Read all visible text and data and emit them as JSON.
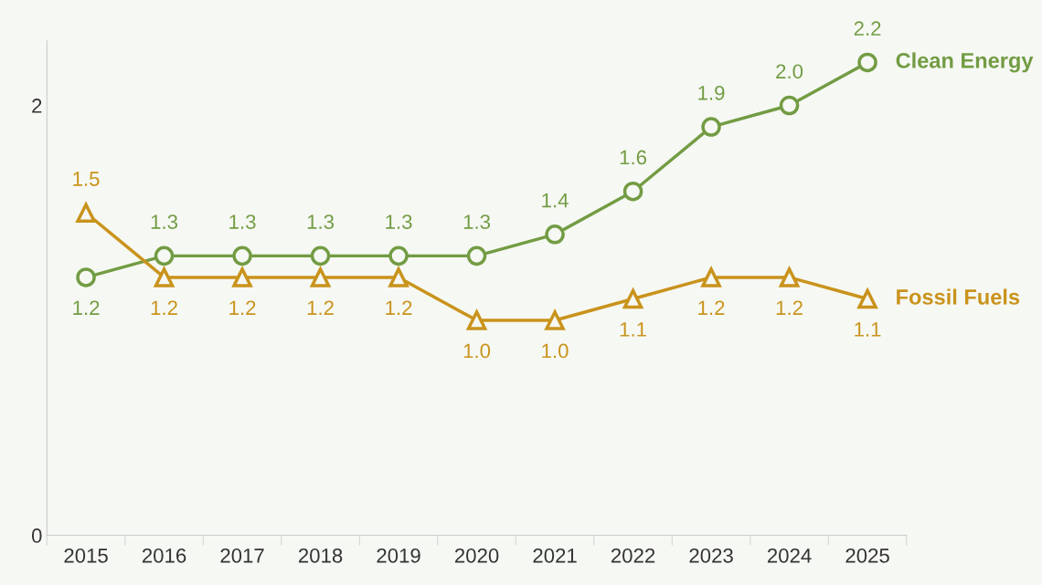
{
  "chart_data": {
    "type": "line",
    "categories": [
      "2015",
      "2016",
      "2017",
      "2018",
      "2019",
      "2020",
      "2021",
      "2022",
      "2023",
      "2024",
      "2025"
    ],
    "series": [
      {
        "name": "Clean Energy",
        "color": "#729c43",
        "marker": "circle",
        "values": [
          1.2,
          1.3,
          1.3,
          1.3,
          1.3,
          1.3,
          1.4,
          1.6,
          1.9,
          2.0,
          2.2
        ],
        "value_labels": [
          "1.2",
          "1.3",
          "1.3",
          "1.3",
          "1.3",
          "1.3",
          "1.4",
          "1.6",
          "1.9",
          "2.0",
          "2.2"
        ]
      },
      {
        "name": "Fossil Fuels",
        "color": "#c9931c",
        "marker": "triangle",
        "values": [
          1.5,
          1.2,
          1.2,
          1.2,
          1.2,
          1.0,
          1.0,
          1.1,
          1.2,
          1.2,
          1.1
        ],
        "value_labels": [
          "1.5",
          "1.2",
          "1.2",
          "1.2",
          "1.2",
          "1.0",
          "1.0",
          "1.1",
          "1.2",
          "1.2",
          "1.1"
        ]
      }
    ],
    "ylim": [
      0,
      2.3
    ],
    "yticks": [
      0,
      2
    ],
    "grid": false
  }
}
